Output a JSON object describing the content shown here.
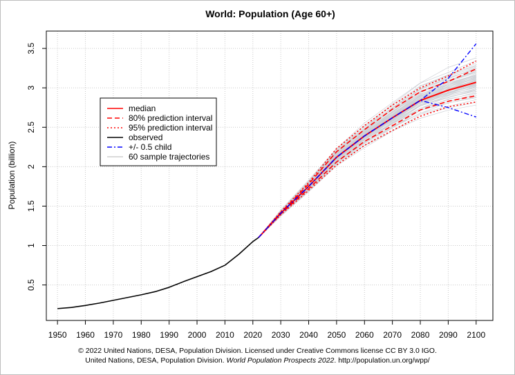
{
  "chart_data": {
    "type": "line",
    "title": "World: Population (Age 60+)",
    "xlabel": "",
    "ylabel": "Population (billion)",
    "xlim": [
      1946,
      2106
    ],
    "ylim": [
      0.05,
      3.72
    ],
    "xticks": [
      1950,
      1960,
      1970,
      1980,
      1990,
      2000,
      2010,
      2020,
      2030,
      2040,
      2050,
      2060,
      2070,
      2080,
      2090,
      2100
    ],
    "yticks": [
      0.5,
      1,
      1.5,
      2,
      2.5,
      3,
      3.5
    ],
    "ytick_labels": [
      "0.5",
      "1",
      "1.5",
      "2",
      "2.5",
      "3",
      "3.5"
    ],
    "grid": true,
    "legend_position": "upper-left",
    "legend": [
      {
        "label": "median",
        "color": "#ff0000",
        "style": "solid"
      },
      {
        "label": "80% prediction interval",
        "color": "#ff0000",
        "style": "dashed"
      },
      {
        "label": "95% prediction interval",
        "color": "#ff0000",
        "style": "dotted"
      },
      {
        "label": "observed",
        "color": "#000000",
        "style": "solid"
      },
      {
        "label": "+/- 0.5 child",
        "color": "#0000ff",
        "style": "dashdot"
      },
      {
        "label": "60 sample trajectories",
        "color": "#b4b4b4",
        "style": "solid"
      }
    ],
    "series": [
      {
        "name": "observed",
        "x": [
          1950,
          1955,
          1960,
          1965,
          1970,
          1975,
          1980,
          1985,
          1990,
          1995,
          2000,
          2005,
          2010,
          2015,
          2020,
          2022
        ],
        "y": [
          0.2,
          0.215,
          0.24,
          0.27,
          0.305,
          0.34,
          0.375,
          0.415,
          0.47,
          0.54,
          0.605,
          0.67,
          0.75,
          0.89,
          1.05,
          1.1
        ]
      },
      {
        "name": "median",
        "x": [
          2022,
          2030,
          2040,
          2050,
          2060,
          2070,
          2080,
          2090,
          2100
        ],
        "y": [
          1.1,
          1.41,
          1.75,
          2.12,
          2.39,
          2.62,
          2.84,
          2.97,
          3.07
        ]
      },
      {
        "name": "80% prediction interval upper",
        "x": [
          2022,
          2030,
          2040,
          2050,
          2060,
          2070,
          2080,
          2090,
          2100
        ],
        "y": [
          1.1,
          1.42,
          1.78,
          2.19,
          2.47,
          2.73,
          2.95,
          3.08,
          3.24
        ]
      },
      {
        "name": "80% prediction interval lower",
        "x": [
          2022,
          2030,
          2040,
          2050,
          2060,
          2070,
          2080,
          2090,
          2100
        ],
        "y": [
          1.1,
          1.4,
          1.72,
          2.06,
          2.32,
          2.52,
          2.72,
          2.83,
          2.9
        ]
      },
      {
        "name": "95% prediction interval upper",
        "x": [
          2022,
          2030,
          2040,
          2050,
          2060,
          2070,
          2080,
          2090,
          2100
        ],
        "y": [
          1.1,
          1.43,
          1.8,
          2.23,
          2.52,
          2.78,
          3.0,
          3.15,
          3.34
        ]
      },
      {
        "name": "95% prediction interval lower",
        "x": [
          2022,
          2030,
          2040,
          2050,
          2060,
          2070,
          2080,
          2090,
          2100
        ],
        "y": [
          1.1,
          1.39,
          1.7,
          2.02,
          2.27,
          2.46,
          2.64,
          2.76,
          2.82
        ]
      },
      {
        "name": "+0.5 child",
        "x": [
          2022,
          2030,
          2040,
          2050,
          2060,
          2070,
          2080,
          2090,
          2100
        ],
        "y": [
          1.1,
          1.41,
          1.75,
          2.12,
          2.39,
          2.62,
          2.84,
          3.12,
          3.56
        ]
      },
      {
        "name": "-0.5 child",
        "x": [
          2022,
          2030,
          2040,
          2050,
          2060,
          2070,
          2080,
          2090,
          2100
        ],
        "y": [
          1.1,
          1.41,
          1.75,
          2.12,
          2.39,
          2.62,
          2.84,
          2.75,
          2.63
        ]
      }
    ],
    "sample_trajectories": {
      "x": [
        2022,
        2030,
        2040,
        2050,
        2060,
        2070,
        2080,
        2090,
        2100
      ],
      "offsets": [
        -0.22,
        -0.19,
        -0.17,
        -0.15,
        -0.13,
        -0.11,
        -0.1,
        -0.09,
        -0.08,
        -0.07,
        -0.06,
        -0.05,
        -0.045,
        -0.04,
        -0.035,
        -0.03,
        -0.025,
        -0.02,
        -0.015,
        -0.01,
        -0.005,
        0,
        0.005,
        0.01,
        0.015,
        0.02,
        0.025,
        0.03,
        0.035,
        0.04,
        0.045,
        0.05,
        0.055,
        0.06,
        0.065,
        0.07,
        0.075,
        0.08,
        0.09,
        0.1,
        0.11,
        0.12,
        0.13,
        0.14,
        0.15,
        0.16,
        0.17,
        0.18,
        0.19,
        0.21,
        -0.12,
        -0.08,
        -0.02,
        0.02,
        0.08,
        0.12,
        0.24,
        -0.25,
        0.27,
        -0.16
      ]
    }
  },
  "credits": {
    "line1": "© 2022 United Nations, DESA, Population Division. Licensed under Creative Commons license CC BY 3.0 IGO.",
    "line2_prefix": "United Nations, DESA, Population Division.",
    "line2_italic": "World Population Prospects 2022",
    "line2_suffix": ". http://population.un.org/wpp/"
  }
}
